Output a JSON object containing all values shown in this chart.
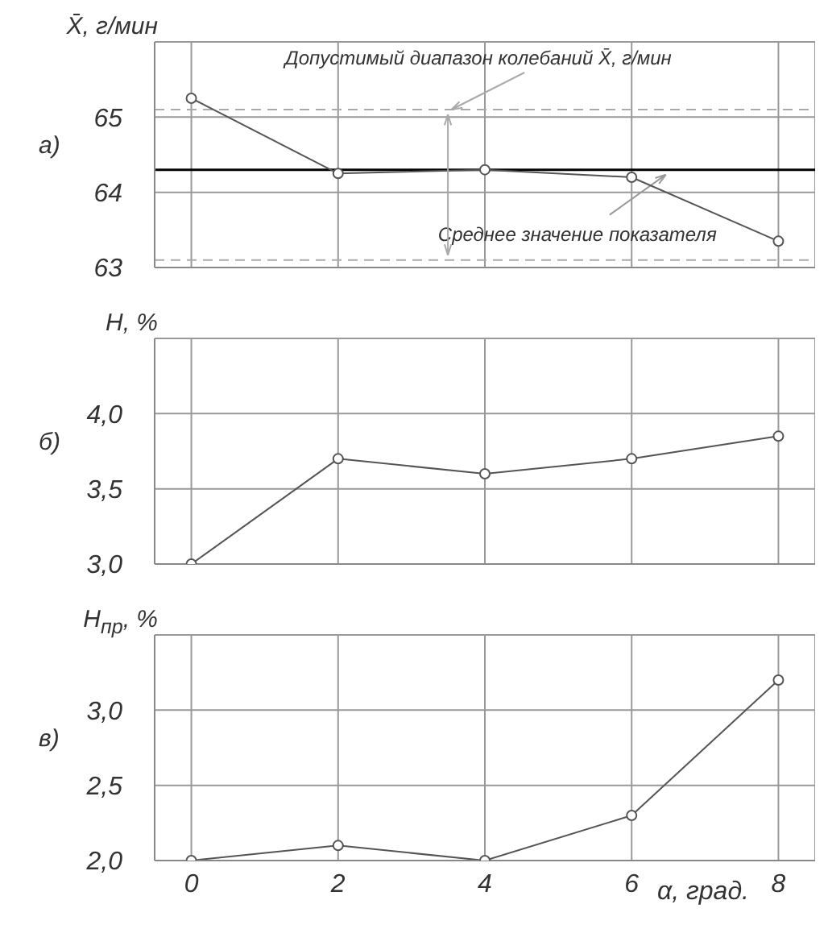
{
  "chart_data": [
    {
      "type": "line",
      "title": "а)",
      "ylabel": "X̄, г/мин",
      "x": [
        0,
        2,
        4,
        6,
        8
      ],
      "series": [
        {
          "color": "#555555",
          "values": [
            65.25,
            64.25,
            64.3,
            64.2,
            63.35
          ]
        }
      ],
      "xlim": [
        -0.5,
        8.5
      ],
      "xticks": [
        0,
        2,
        4,
        6,
        8
      ],
      "ylim": [
        63,
        66
      ],
      "yticks": [
        63,
        64,
        65
      ],
      "grid": true,
      "marker": "circle",
      "tick_labels": "y",
      "ref_lines": [
        {
          "axis": "y",
          "value": 64.3,
          "label": "Среднее значение показателя",
          "color": "#000000"
        },
        {
          "axis": "y",
          "value": 65.1,
          "color": "#aaaaaa",
          "line_style": "dashed"
        },
        {
          "axis": "y",
          "value": 63.1,
          "color": "#aaaaaa",
          "line_style": "dashed"
        }
      ],
      "annotations": [
        {
          "text": "Допустимый диапазон колебаний X̄, г/мин",
          "x": 3.5,
          "y": 65.1
        }
      ]
    },
    {
      "type": "line",
      "title": "б)",
      "ylabel": "H, %",
      "x": [
        0,
        2,
        4,
        6,
        8
      ],
      "series": [
        {
          "color": "#555555",
          "values": [
            3.0,
            3.7,
            3.6,
            3.7,
            3.85
          ]
        }
      ],
      "xlim": [
        -0.5,
        8.5
      ],
      "xticks": [
        0,
        2,
        4,
        6,
        8
      ],
      "ylim": [
        3.0,
        4.5
      ],
      "yticks": [
        {
          "value": 3,
          "label": "3,0"
        },
        {
          "value": 3.5,
          "label": "3,5"
        },
        {
          "value": 4,
          "label": "4,0"
        }
      ],
      "grid": true,
      "marker": "circle",
      "tick_labels": "y"
    },
    {
      "type": "line",
      "title": "в)",
      "ylabel": "H$_{пр}$, %",
      "xlabel": "α, град.",
      "x": [
        0,
        2,
        4,
        6,
        8
      ],
      "series": [
        {
          "color": "#555555",
          "values": [
            2.0,
            2.1,
            2.0,
            2.3,
            3.2
          ]
        }
      ],
      "xlim": [
        -0.5,
        8.5
      ],
      "xticks": [
        0,
        2,
        4,
        6,
        8
      ],
      "ylim": [
        2.0,
        3.5
      ],
      "yticks": [
        {
          "value": 2,
          "label": "2,0"
        },
        {
          "value": 2.5,
          "label": "2,5"
        },
        {
          "value": 3,
          "label": "3,0"
        }
      ],
      "grid": true,
      "marker": "circle"
    }
  ]
}
